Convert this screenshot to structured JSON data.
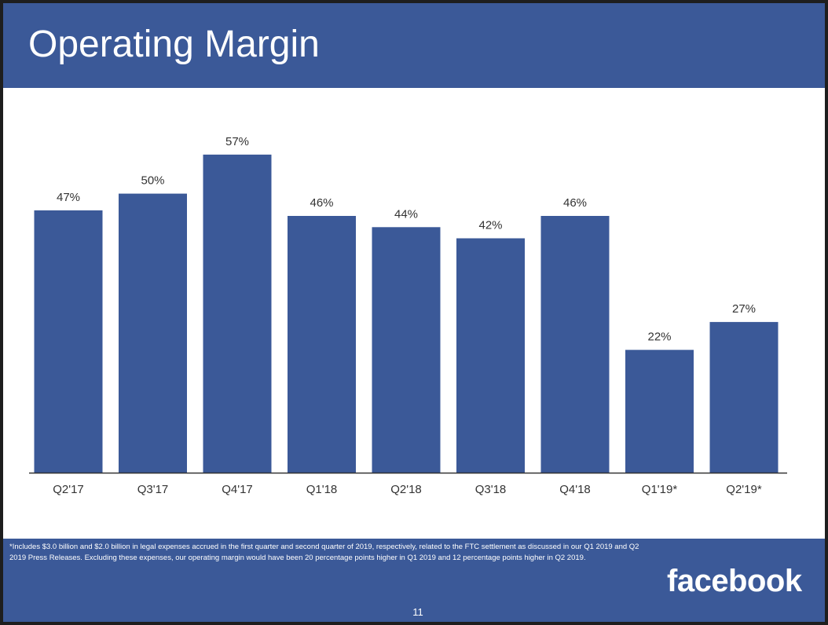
{
  "slide": {
    "title": "Operating Margin",
    "footnote": "*Includes $3.0 billion and $2.0 billion in legal expenses accrued in the first quarter and second quarter of 2019, respectively, related to the FTC settlement as discussed in our Q1 2019 and Q2 2019 Press Releases. Excluding these expenses, our operating margin would have been 20 percentage points higher in Q1 2019 and 12 percentage points higher in Q2 2019.",
    "logo_text": "facebook",
    "page_number": "11"
  },
  "colors": {
    "brand_blue": "#3b5998",
    "bar": "#3b5998",
    "text": "#333333",
    "axis": "#333333"
  },
  "chart_data": {
    "type": "bar",
    "title": "Operating Margin",
    "xlabel": "",
    "ylabel": "",
    "categories": [
      "Q2'17",
      "Q3'17",
      "Q4'17",
      "Q1'18",
      "Q2'18",
      "Q3'18",
      "Q4'18",
      "Q1'19*",
      "Q2'19*"
    ],
    "values": [
      47,
      50,
      57,
      46,
      44,
      42,
      46,
      22,
      27
    ],
    "data_labels": [
      "47%",
      "50%",
      "57%",
      "46%",
      "44%",
      "42%",
      "46%",
      "22%",
      "27%"
    ],
    "ylim": [
      0,
      65
    ],
    "grid": false,
    "legend": "none"
  }
}
